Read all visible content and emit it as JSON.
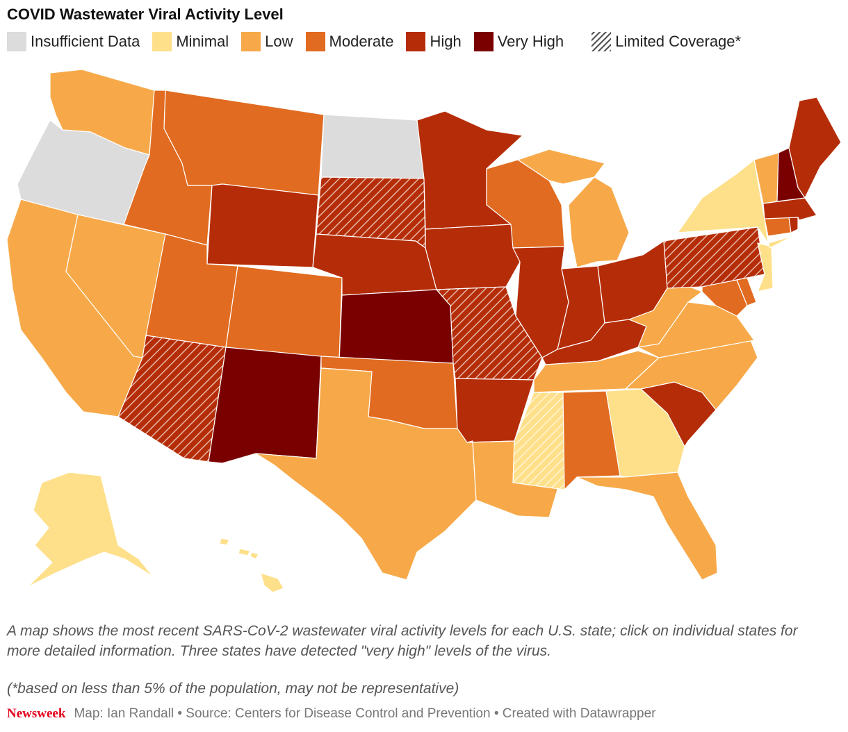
{
  "title": "COVID Wastewater Viral Activity Level",
  "legend": [
    {
      "key": "insufficient",
      "label": "Insufficient Data",
      "color": "#dcdcdc"
    },
    {
      "key": "minimal",
      "label": "Minimal",
      "color": "#fee08b"
    },
    {
      "key": "low",
      "label": "Low",
      "color": "#f7a949"
    },
    {
      "key": "moderate",
      "label": "Moderate",
      "color": "#e16b20"
    },
    {
      "key": "high",
      "label": "High",
      "color": "#b52d08"
    },
    {
      "key": "veryhigh",
      "label": "Very High",
      "color": "#7a0000"
    }
  ],
  "limited_label": "Limited Coverage*",
  "states": [
    {
      "abbr": "WA",
      "level": "low",
      "limited": false
    },
    {
      "abbr": "OR",
      "level": "insufficient",
      "limited": false
    },
    {
      "abbr": "CA",
      "level": "low",
      "limited": false
    },
    {
      "abbr": "NV",
      "level": "low",
      "limited": false
    },
    {
      "abbr": "ID",
      "level": "moderate",
      "limited": false
    },
    {
      "abbr": "MT",
      "level": "moderate",
      "limited": false
    },
    {
      "abbr": "WY",
      "level": "high",
      "limited": false
    },
    {
      "abbr": "UT",
      "level": "moderate",
      "limited": false
    },
    {
      "abbr": "AZ",
      "level": "high",
      "limited": true
    },
    {
      "abbr": "CO",
      "level": "moderate",
      "limited": false
    },
    {
      "abbr": "NM",
      "level": "veryhigh",
      "limited": false
    },
    {
      "abbr": "ND",
      "level": "insufficient",
      "limited": false
    },
    {
      "abbr": "SD",
      "level": "high",
      "limited": true
    },
    {
      "abbr": "NE",
      "level": "high",
      "limited": false
    },
    {
      "abbr": "KS",
      "level": "veryhigh",
      "limited": false
    },
    {
      "abbr": "OK",
      "level": "moderate",
      "limited": false
    },
    {
      "abbr": "TX",
      "level": "low",
      "limited": false
    },
    {
      "abbr": "MN",
      "level": "high",
      "limited": false
    },
    {
      "abbr": "IA",
      "level": "high",
      "limited": false
    },
    {
      "abbr": "MO",
      "level": "high",
      "limited": true
    },
    {
      "abbr": "AR",
      "level": "high",
      "limited": false
    },
    {
      "abbr": "LA",
      "level": "low",
      "limited": false
    },
    {
      "abbr": "WI",
      "level": "moderate",
      "limited": false
    },
    {
      "abbr": "IL",
      "level": "high",
      "limited": false
    },
    {
      "abbr": "MI",
      "level": "low",
      "limited": false
    },
    {
      "abbr": "IN",
      "level": "high",
      "limited": false
    },
    {
      "abbr": "OH",
      "level": "high",
      "limited": false
    },
    {
      "abbr": "KY",
      "level": "high",
      "limited": false
    },
    {
      "abbr": "TN",
      "level": "low",
      "limited": false
    },
    {
      "abbr": "MS",
      "level": "minimal",
      "limited": true
    },
    {
      "abbr": "AL",
      "level": "moderate",
      "limited": false
    },
    {
      "abbr": "GA",
      "level": "minimal",
      "limited": false
    },
    {
      "abbr": "FL",
      "level": "low",
      "limited": false
    },
    {
      "abbr": "SC",
      "level": "high",
      "limited": false
    },
    {
      "abbr": "NC",
      "level": "low",
      "limited": false
    },
    {
      "abbr": "VA",
      "level": "low",
      "limited": false
    },
    {
      "abbr": "WV",
      "level": "low",
      "limited": false
    },
    {
      "abbr": "PA",
      "level": "high",
      "limited": true
    },
    {
      "abbr": "NY",
      "level": "minimal",
      "limited": false
    },
    {
      "abbr": "NJ",
      "level": "minimal",
      "limited": false
    },
    {
      "abbr": "DE",
      "level": "moderate",
      "limited": false
    },
    {
      "abbr": "MD",
      "level": "moderate",
      "limited": false
    },
    {
      "abbr": "CT",
      "level": "moderate",
      "limited": false
    },
    {
      "abbr": "RI",
      "level": "high",
      "limited": false
    },
    {
      "abbr": "MA",
      "level": "high",
      "limited": false
    },
    {
      "abbr": "VT",
      "level": "low",
      "limited": false
    },
    {
      "abbr": "NH",
      "level": "veryhigh",
      "limited": false
    },
    {
      "abbr": "ME",
      "level": "high",
      "limited": false
    },
    {
      "abbr": "AK",
      "level": "minimal",
      "limited": false
    },
    {
      "abbr": "HI",
      "level": "minimal",
      "limited": false
    }
  ],
  "caption": "A map shows the most recent SARS-CoV-2 wastewater viral activity levels for each U.S. state; click on individual states for more detailed information. Three states have detected \"very high\" levels of the virus.",
  "footnote": "(*based on less than 5% of the population, may not be representative)",
  "footer": {
    "brand": "Newsweek",
    "credits": "Map: Ian Randall • Source: Centers for Disease Control and Prevention • Created with Datawrapper"
  }
}
